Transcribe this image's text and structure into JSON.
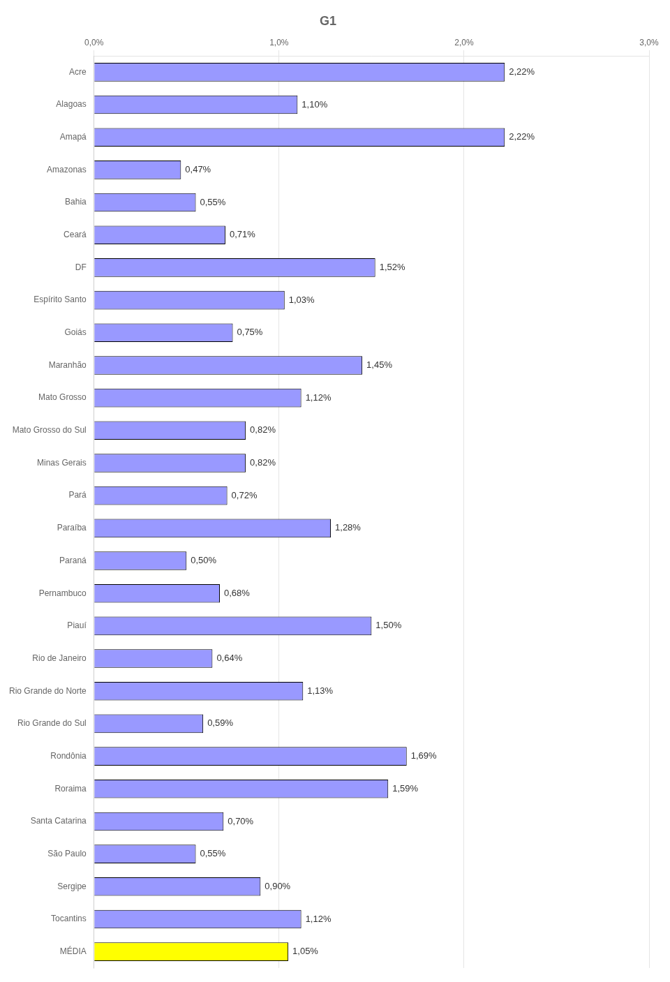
{
  "chart_data": {
    "type": "bar",
    "orientation": "horizontal",
    "title": "G1",
    "categories": [
      "Acre",
      "Alagoas",
      "Amapá",
      "Amazonas",
      "Bahia",
      "Ceará",
      "DF",
      "Espírito Santo",
      "Goiás",
      "Maranhão",
      "Mato Grosso",
      "Mato Grosso do Sul",
      "Minas Gerais",
      "Pará",
      "Paraíba",
      "Paraná",
      "Pernambuco",
      "Piauí",
      "Rio de Janeiro",
      "Rio Grande do Norte",
      "Rio Grande do Sul",
      "Rondônia",
      "Roraima",
      "Santa Catarina",
      "São Paulo",
      "Sergipe",
      "Tocantins",
      "MÉDIA"
    ],
    "values": [
      2.22,
      1.1,
      2.22,
      0.47,
      0.55,
      0.71,
      1.52,
      1.03,
      0.75,
      1.45,
      1.12,
      0.82,
      0.82,
      0.72,
      1.28,
      0.5,
      0.68,
      1.5,
      0.64,
      1.13,
      0.59,
      1.69,
      1.59,
      0.7,
      0.55,
      0.9,
      1.12,
      1.05
    ],
    "value_labels": [
      "2,22%",
      "1,10%",
      "2,22%",
      "0,47%",
      "0,55%",
      "0,71%",
      "1,52%",
      "1,03%",
      "0,75%",
      "1,45%",
      "1,12%",
      "0,82%",
      "0,82%",
      "0,72%",
      "1,28%",
      "0,50%",
      "0,68%",
      "1,50%",
      "0,64%",
      "1,13%",
      "0,59%",
      "1,69%",
      "1,59%",
      "0,70%",
      "0,55%",
      "0,90%",
      "1,12%",
      "1,05%"
    ],
    "colors": [
      "#9999ff",
      "#9999ff",
      "#9999ff",
      "#9999ff",
      "#9999ff",
      "#9999ff",
      "#9999ff",
      "#9999ff",
      "#9999ff",
      "#9999ff",
      "#9999ff",
      "#9999ff",
      "#9999ff",
      "#9999ff",
      "#9999ff",
      "#9999ff",
      "#9999ff",
      "#9999ff",
      "#9999ff",
      "#9999ff",
      "#9999ff",
      "#9999ff",
      "#9999ff",
      "#9999ff",
      "#9999ff",
      "#9999ff",
      "#9999ff",
      "#ffff00"
    ],
    "xlim": [
      0,
      3.0
    ],
    "xticks": [
      {
        "value": 0.0,
        "label": "0,0%"
      },
      {
        "value": 1.0,
        "label": "1,0%"
      },
      {
        "value": 2.0,
        "label": "2,0%"
      },
      {
        "value": 3.0,
        "label": "3,0%"
      }
    ],
    "grid": true,
    "data_labels": true
  }
}
